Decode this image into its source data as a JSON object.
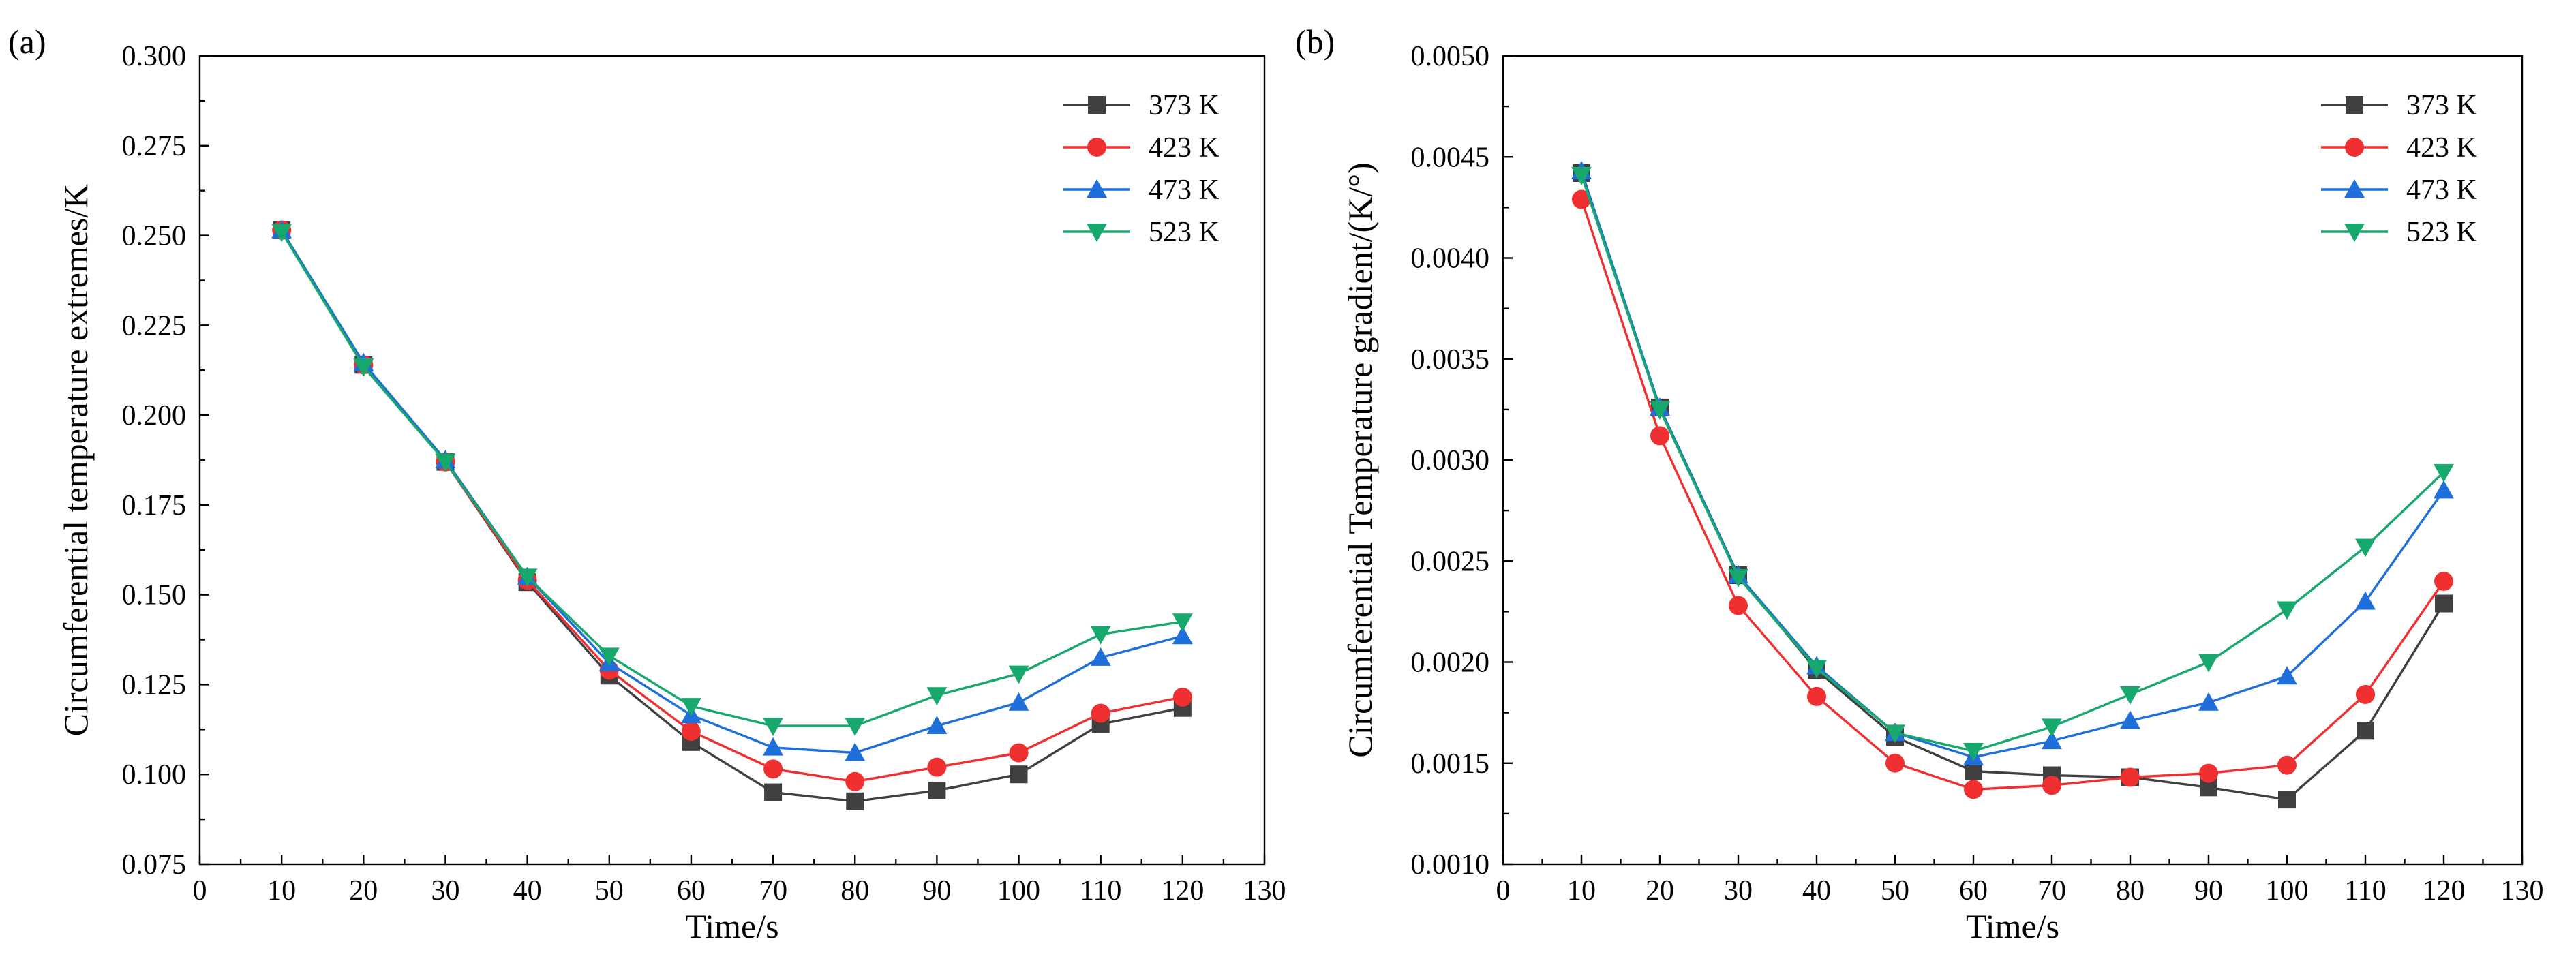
{
  "chart_data": [
    {
      "panel_label": "(a)",
      "type": "line",
      "xlabel": "Time/s",
      "ylabel": "Circumferential temperature extremes/K",
      "xlim": [
        0,
        130
      ],
      "ylim": [
        0.075,
        0.3
      ],
      "xticks": [
        0,
        10,
        20,
        30,
        40,
        50,
        60,
        70,
        80,
        90,
        100,
        110,
        120,
        130
      ],
      "yticks": [
        "0.075",
        "0.100",
        "0.125",
        "0.150",
        "0.175",
        "0.200",
        "0.225",
        "0.250",
        "0.275",
        "0.300"
      ],
      "grid": false,
      "legend": "top-right",
      "x": [
        10,
        20,
        30,
        40,
        50,
        60,
        70,
        80,
        90,
        100,
        110,
        120
      ],
      "series": [
        {
          "name": "373 K",
          "color": "#404040",
          "marker": "square",
          "values": [
            0.2515,
            0.214,
            0.187,
            0.1535,
            0.1275,
            0.109,
            0.095,
            0.0925,
            0.0955,
            0.1,
            0.114,
            0.1185
          ]
        },
        {
          "name": "423 K",
          "color": "#f03030",
          "marker": "circle",
          "values": [
            0.2515,
            0.214,
            0.187,
            0.154,
            0.129,
            0.112,
            0.1015,
            0.098,
            0.102,
            0.106,
            0.117,
            0.1215
          ]
        },
        {
          "name": "473 K",
          "color": "#1e6fd9",
          "marker": "triangle-up",
          "values": [
            0.2515,
            0.2145,
            0.1875,
            0.155,
            0.131,
            0.1165,
            0.1075,
            0.106,
            0.1135,
            0.12,
            0.1325,
            0.1385
          ]
        },
        {
          "name": "523 K",
          "color": "#16a86c",
          "marker": "triangle-down",
          "values": [
            0.251,
            0.2135,
            0.187,
            0.155,
            0.133,
            0.119,
            0.1135,
            0.1135,
            0.122,
            0.128,
            0.139,
            0.1425
          ]
        }
      ]
    },
    {
      "panel_label": "(b)",
      "type": "line",
      "xlabel": "Time/s",
      "ylabel": "Circumferential Temperature gradient/(K/°)",
      "xlim": [
        0,
        130
      ],
      "ylim": [
        0.001,
        0.005
      ],
      "xticks": [
        0,
        10,
        20,
        30,
        40,
        50,
        60,
        70,
        80,
        90,
        100,
        110,
        120,
        130
      ],
      "yticks": [
        "0.0010",
        "0.0015",
        "0.0020",
        "0.0025",
        "0.0030",
        "0.0035",
        "0.0040",
        "0.0045",
        "0.0050"
      ],
      "grid": false,
      "legend": "top-right",
      "x": [
        10,
        20,
        30,
        40,
        50,
        60,
        70,
        80,
        90,
        100,
        110,
        120
      ],
      "series": [
        {
          "name": "373 K",
          "color": "#404040",
          "marker": "square",
          "values": [
            0.00442,
            0.00326,
            0.00243,
            0.00196,
            0.00163,
            0.00146,
            0.00144,
            0.00143,
            0.00138,
            0.00132,
            0.00166,
            0.00229
          ]
        },
        {
          "name": "423 K",
          "color": "#f03030",
          "marker": "circle",
          "values": [
            0.00429,
            0.00312,
            0.00228,
            0.00183,
            0.0015,
            0.00137,
            0.00139,
            0.00143,
            0.00145,
            0.00149,
            0.00184,
            0.0024
          ]
        },
        {
          "name": "473 K",
          "color": "#1e6fd9",
          "marker": "triangle-up",
          "values": [
            0.00443,
            0.00326,
            0.00243,
            0.00198,
            0.00165,
            0.00153,
            0.00161,
            0.00171,
            0.0018,
            0.00193,
            0.0023,
            0.00285
          ]
        },
        {
          "name": "523 K",
          "color": "#16a86c",
          "marker": "triangle-down",
          "values": [
            0.00441,
            0.00325,
            0.00242,
            0.00197,
            0.00165,
            0.00156,
            0.00168,
            0.00184,
            0.002,
            0.00226,
            0.00257,
            0.00294
          ]
        }
      ]
    }
  ]
}
